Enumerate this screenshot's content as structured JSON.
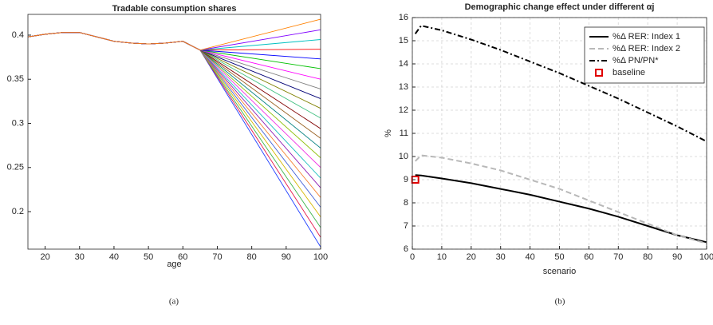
{
  "chart_data": [
    {
      "type": "line",
      "title": "Tradable consumption shares",
      "xlabel": "age",
      "caption": "(a)",
      "x": [
        15,
        20,
        25,
        30,
        35,
        40,
        45,
        50,
        55,
        60,
        65,
        100
      ],
      "xlim": [
        15,
        100
      ],
      "xticks": [
        20,
        30,
        40,
        50,
        60,
        70,
        80,
        90,
        100
      ],
      "ylim": [
        0.1575,
        0.4235
      ],
      "yticks": [
        0.2,
        0.25,
        0.3,
        0.35,
        0.4
      ],
      "grid": false,
      "series": [
        {
          "color": "#1f3fff",
          "values": [
            0.398,
            0.401,
            0.403,
            0.403,
            0.398,
            0.393,
            0.391,
            0.39,
            0.391,
            0.393,
            0.383,
            0.16
          ]
        },
        {
          "color": "#e6194b",
          "values": [
            0.398,
            0.401,
            0.403,
            0.403,
            0.398,
            0.393,
            0.391,
            0.39,
            0.391,
            0.393,
            0.383,
            0.171
          ]
        },
        {
          "color": "#3cb44b",
          "values": [
            0.398,
            0.401,
            0.403,
            0.403,
            0.398,
            0.393,
            0.391,
            0.39,
            0.391,
            0.393,
            0.383,
            0.182
          ]
        },
        {
          "color": "#d4b800",
          "values": [
            0.398,
            0.401,
            0.403,
            0.403,
            0.398,
            0.393,
            0.391,
            0.39,
            0.391,
            0.393,
            0.383,
            0.194
          ]
        },
        {
          "color": "#4363d8",
          "values": [
            0.398,
            0.401,
            0.403,
            0.403,
            0.398,
            0.393,
            0.391,
            0.39,
            0.391,
            0.393,
            0.383,
            0.205
          ]
        },
        {
          "color": "#f58231",
          "values": [
            0.398,
            0.401,
            0.403,
            0.403,
            0.398,
            0.393,
            0.391,
            0.39,
            0.391,
            0.393,
            0.383,
            0.216
          ]
        },
        {
          "color": "#911eb4",
          "values": [
            0.398,
            0.401,
            0.403,
            0.403,
            0.398,
            0.393,
            0.391,
            0.39,
            0.391,
            0.393,
            0.383,
            0.227
          ]
        },
        {
          "color": "#20c0c0",
          "values": [
            0.398,
            0.401,
            0.403,
            0.403,
            0.398,
            0.393,
            0.391,
            0.39,
            0.391,
            0.393,
            0.383,
            0.238
          ]
        },
        {
          "color": "#f032e6",
          "values": [
            0.398,
            0.401,
            0.403,
            0.403,
            0.398,
            0.393,
            0.391,
            0.39,
            0.391,
            0.393,
            0.383,
            0.25
          ]
        },
        {
          "color": "#8fc00c",
          "values": [
            0.398,
            0.401,
            0.403,
            0.403,
            0.398,
            0.393,
            0.391,
            0.39,
            0.391,
            0.393,
            0.383,
            0.261
          ]
        },
        {
          "color": "#008080",
          "values": [
            0.398,
            0.401,
            0.403,
            0.403,
            0.398,
            0.393,
            0.391,
            0.39,
            0.391,
            0.393,
            0.383,
            0.272
          ]
        },
        {
          "color": "#9a6324",
          "values": [
            0.398,
            0.401,
            0.403,
            0.403,
            0.398,
            0.393,
            0.391,
            0.39,
            0.391,
            0.393,
            0.383,
            0.283
          ]
        },
        {
          "color": "#800000",
          "values": [
            0.398,
            0.401,
            0.403,
            0.403,
            0.398,
            0.393,
            0.391,
            0.39,
            0.391,
            0.393,
            0.383,
            0.294
          ]
        },
        {
          "color": "#40c080",
          "values": [
            0.398,
            0.401,
            0.403,
            0.403,
            0.398,
            0.393,
            0.391,
            0.39,
            0.391,
            0.393,
            0.383,
            0.306
          ]
        },
        {
          "color": "#808000",
          "values": [
            0.398,
            0.401,
            0.403,
            0.403,
            0.398,
            0.393,
            0.391,
            0.39,
            0.391,
            0.393,
            0.383,
            0.317
          ]
        },
        {
          "color": "#000075",
          "values": [
            0.398,
            0.401,
            0.403,
            0.403,
            0.398,
            0.393,
            0.391,
            0.39,
            0.391,
            0.393,
            0.383,
            0.328
          ]
        },
        {
          "color": "#808080",
          "values": [
            0.398,
            0.401,
            0.403,
            0.403,
            0.398,
            0.393,
            0.391,
            0.39,
            0.391,
            0.393,
            0.383,
            0.339
          ]
        },
        {
          "color": "#ff00ff",
          "values": [
            0.398,
            0.401,
            0.403,
            0.403,
            0.398,
            0.393,
            0.391,
            0.39,
            0.391,
            0.393,
            0.383,
            0.35
          ]
        },
        {
          "color": "#00c000",
          "values": [
            0.398,
            0.401,
            0.403,
            0.403,
            0.398,
            0.393,
            0.391,
            0.39,
            0.391,
            0.393,
            0.383,
            0.362
          ]
        },
        {
          "color": "#0000ff",
          "values": [
            0.398,
            0.401,
            0.403,
            0.403,
            0.398,
            0.393,
            0.391,
            0.39,
            0.391,
            0.393,
            0.383,
            0.373
          ]
        },
        {
          "color": "#ff0000",
          "values": [
            0.398,
            0.401,
            0.403,
            0.403,
            0.398,
            0.393,
            0.391,
            0.39,
            0.391,
            0.393,
            0.383,
            0.384
          ]
        },
        {
          "color": "#00c0c0",
          "values": [
            0.398,
            0.401,
            0.403,
            0.403,
            0.398,
            0.393,
            0.391,
            0.39,
            0.391,
            0.393,
            0.383,
            0.395
          ]
        },
        {
          "color": "#8000ff",
          "values": [
            0.398,
            0.401,
            0.403,
            0.403,
            0.398,
            0.393,
            0.391,
            0.39,
            0.391,
            0.393,
            0.383,
            0.406
          ]
        },
        {
          "color": "#ff8000",
          "values": [
            0.398,
            0.401,
            0.403,
            0.403,
            0.398,
            0.393,
            0.391,
            0.39,
            0.391,
            0.393,
            0.383,
            0.418
          ]
        }
      ]
    },
    {
      "type": "line",
      "title": "Demographic change effect under different αj",
      "xlabel": "scenario",
      "ylabel": "%",
      "caption": "(b)",
      "x": [
        1,
        3,
        10,
        20,
        30,
        40,
        50,
        60,
        70,
        80,
        90,
        100
      ],
      "xlim": [
        0,
        100
      ],
      "xticks": [
        0,
        10,
        20,
        30,
        40,
        50,
        60,
        70,
        80,
        90,
        100
      ],
      "ylim": [
        6,
        16
      ],
      "yticks": [
        6,
        7,
        8,
        9,
        10,
        11,
        12,
        13,
        14,
        15,
        16
      ],
      "grid": true,
      "legend": "northeast",
      "series": [
        {
          "name": "%Δ RER: Index 1",
          "color": "#000000",
          "dash": "solid",
          "values": [
            9.2,
            9.18,
            9.05,
            8.85,
            8.6,
            8.35,
            8.05,
            7.75,
            7.4,
            7.0,
            6.6,
            6.3
          ]
        },
        {
          "name": "%Δ RER: Index 2",
          "color": "#b8b8b8",
          "dash": "dashed",
          "values": [
            9.8,
            10.05,
            9.95,
            9.7,
            9.4,
            9.0,
            8.6,
            8.1,
            7.6,
            7.1,
            6.6,
            6.25
          ]
        },
        {
          "name": "%Δ PN/PN*",
          "color": "#000000",
          "dash": "dashdot",
          "values": [
            15.3,
            15.65,
            15.45,
            15.05,
            14.6,
            14.1,
            13.6,
            13.05,
            12.5,
            11.9,
            11.3,
            10.65
          ]
        }
      ],
      "baseline": {
        "name": "baseline",
        "x": 1,
        "y": 9.0,
        "color": "#e00000"
      }
    }
  ]
}
